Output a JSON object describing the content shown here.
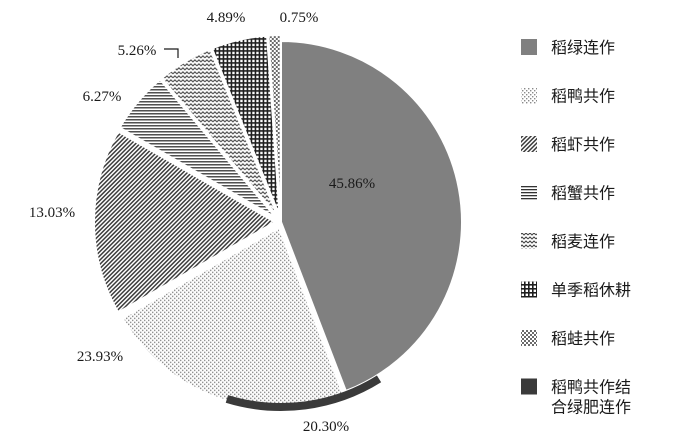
{
  "chart_data": {
    "type": "pie",
    "title": "",
    "slices": [
      {
        "label": "稻绿连作",
        "value": 45.86,
        "value_label": "45.86%",
        "pattern": "solid",
        "color": "#808080"
      },
      {
        "label": "稻鸭共作",
        "value": 23.93,
        "value_label": "23.93%",
        "pattern": "dots",
        "color": "#9a9a9a"
      },
      {
        "label": "稻虾共作",
        "value": 13.03,
        "value_label": "13.03%",
        "pattern": "diag-dense",
        "color": "#555555"
      },
      {
        "label": "稻蟹共作",
        "value": 6.27,
        "value_label": "6.27%",
        "pattern": "hlines",
        "color": "#444444"
      },
      {
        "label": "稻麦连作",
        "value": 5.26,
        "value_label": "5.26%",
        "pattern": "wave",
        "color": "#555555"
      },
      {
        "label": "单季稻休耕",
        "value": 4.89,
        "value_label": "4.89%",
        "pattern": "grid",
        "color": "#222222"
      },
      {
        "label": "稻蛙共作",
        "value": 0.75,
        "value_label": "0.75%",
        "pattern": "checker",
        "color": "#777777"
      }
    ],
    "highlight_arc": {
      "label": "稻鸭共作结合绿肥连作",
      "value_label": "20.30%",
      "color": "#3a3a3a"
    },
    "legend": {
      "position": "right",
      "entries": [
        "稻绿连作",
        "稻鸭共作",
        "稻虾共作",
        "稻蟹共作",
        "稻麦连作",
        "单季稻休耕",
        "稻蛙共作",
        [
          "稻鸭共作结",
          "合绿肥连作"
        ]
      ]
    }
  }
}
